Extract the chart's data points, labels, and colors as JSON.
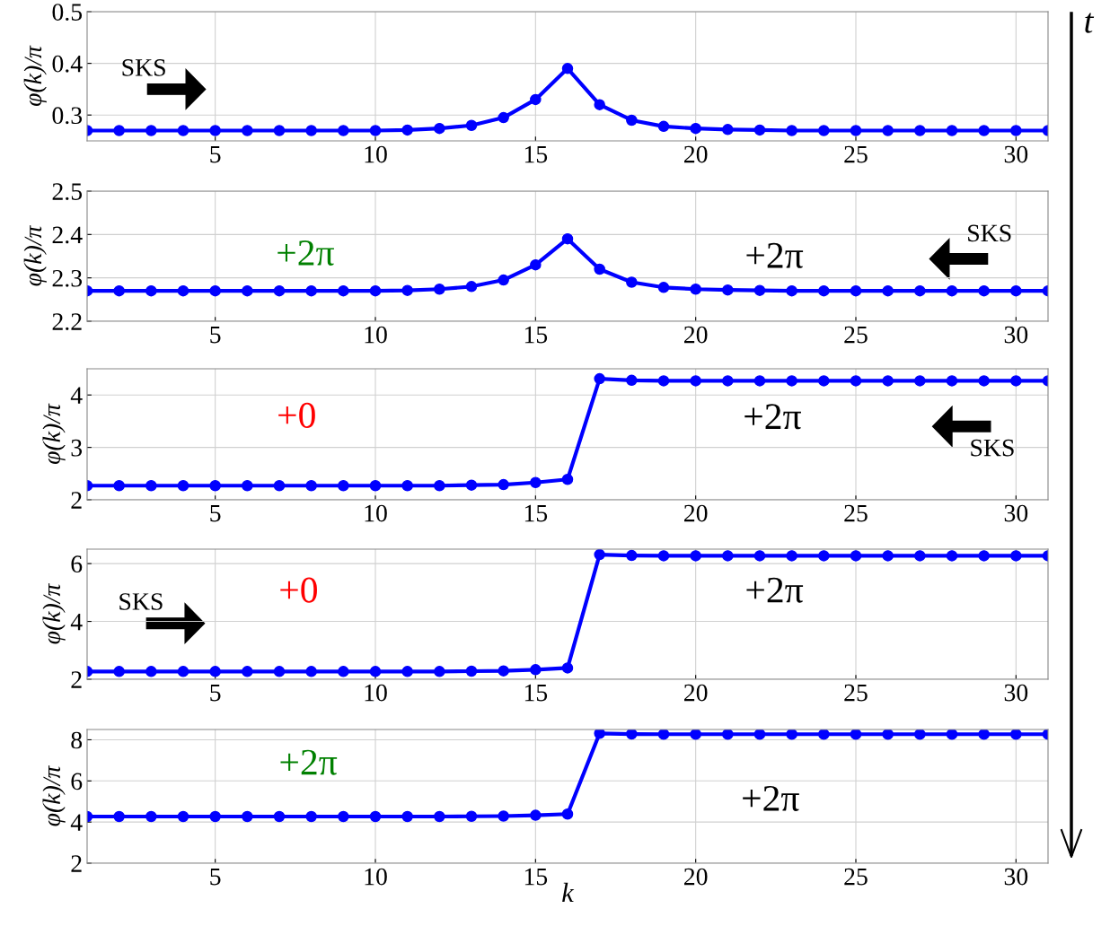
{
  "chart_data": [
    {
      "type": "line",
      "ylabel": "φ(k)/π",
      "x": [
        1,
        2,
        3,
        4,
        5,
        6,
        7,
        8,
        9,
        10,
        11,
        12,
        13,
        14,
        15,
        16,
        17,
        18,
        19,
        20,
        21,
        22,
        23,
        24,
        25,
        26,
        27,
        28,
        29,
        30,
        31
      ],
      "series": [
        {
          "color": "#0000ff",
          "values": [
            0.27,
            0.27,
            0.27,
            0.27,
            0.27,
            0.27,
            0.27,
            0.27,
            0.27,
            0.27,
            0.271,
            0.274,
            0.28,
            0.295,
            0.33,
            0.39,
            0.32,
            0.29,
            0.278,
            0.274,
            0.272,
            0.271,
            0.27,
            0.27,
            0.27,
            0.27,
            0.27,
            0.27,
            0.27,
            0.27,
            0.27
          ]
        }
      ],
      "xlim": [
        1,
        31
      ],
      "xticks": [
        5,
        10,
        15,
        20,
        25,
        30
      ],
      "ylim": [
        0.25,
        0.5
      ],
      "yticks": [
        0.3,
        0.4,
        0.5
      ],
      "grid": true,
      "marker": "circle",
      "line_style": "solid",
      "annotations": [
        "SKS",
        "t"
      ]
    },
    {
      "type": "line",
      "ylabel": "φ(k)/π",
      "x": [
        1,
        2,
        3,
        4,
        5,
        6,
        7,
        8,
        9,
        10,
        11,
        12,
        13,
        14,
        15,
        16,
        17,
        18,
        19,
        20,
        21,
        22,
        23,
        24,
        25,
        26,
        27,
        28,
        29,
        30,
        31
      ],
      "series": [
        {
          "color": "#0000ff",
          "values": [
            2.27,
            2.27,
            2.27,
            2.27,
            2.27,
            2.27,
            2.27,
            2.27,
            2.27,
            2.27,
            2.271,
            2.274,
            2.28,
            2.295,
            2.33,
            2.39,
            2.32,
            2.29,
            2.278,
            2.274,
            2.272,
            2.271,
            2.27,
            2.27,
            2.27,
            2.27,
            2.27,
            2.27,
            2.27,
            2.27,
            2.27
          ]
        }
      ],
      "xlim": [
        1,
        31
      ],
      "xticks": [
        5,
        10,
        15,
        20,
        25,
        30
      ],
      "ylim": [
        2.2,
        2.5
      ],
      "yticks": [
        2.2,
        2.3,
        2.4,
        2.5
      ],
      "grid": true,
      "marker": "circle",
      "line_style": "solid",
      "annotations": [
        "+2π",
        "+2π",
        "SKS"
      ]
    },
    {
      "type": "line",
      "ylabel": "φ(k)/π",
      "x": [
        1,
        2,
        3,
        4,
        5,
        6,
        7,
        8,
        9,
        10,
        11,
        12,
        13,
        14,
        15,
        16,
        17,
        18,
        19,
        20,
        21,
        22,
        23,
        24,
        25,
        26,
        27,
        28,
        29,
        30,
        31
      ],
      "series": [
        {
          "color": "#0000ff",
          "values": [
            2.27,
            2.27,
            2.27,
            2.27,
            2.27,
            2.27,
            2.27,
            2.27,
            2.27,
            2.27,
            2.27,
            2.27,
            2.28,
            2.29,
            2.33,
            2.39,
            4.31,
            4.28,
            4.27,
            4.27,
            4.27,
            4.27,
            4.27,
            4.27,
            4.27,
            4.27,
            4.27,
            4.27,
            4.27,
            4.27,
            4.27
          ]
        }
      ],
      "xlim": [
        1,
        31
      ],
      "xticks": [
        5,
        10,
        15,
        20,
        25,
        30
      ],
      "ylim": [
        2,
        4.5
      ],
      "yticks": [
        2,
        3,
        4
      ],
      "grid": true,
      "marker": "circle",
      "line_style": "solid",
      "annotations": [
        "+0",
        "+2π",
        "SKS"
      ]
    },
    {
      "type": "line",
      "ylabel": "φ(k)/π",
      "x": [
        1,
        2,
        3,
        4,
        5,
        6,
        7,
        8,
        9,
        10,
        11,
        12,
        13,
        14,
        15,
        16,
        17,
        18,
        19,
        20,
        21,
        22,
        23,
        24,
        25,
        26,
        27,
        28,
        29,
        30,
        31
      ],
      "series": [
        {
          "color": "#0000ff",
          "values": [
            2.27,
            2.27,
            2.27,
            2.27,
            2.27,
            2.27,
            2.27,
            2.27,
            2.27,
            2.27,
            2.27,
            2.27,
            2.28,
            2.29,
            2.33,
            2.39,
            6.31,
            6.28,
            6.27,
            6.27,
            6.27,
            6.27,
            6.27,
            6.27,
            6.27,
            6.27,
            6.27,
            6.27,
            6.27,
            6.27,
            6.27
          ]
        }
      ],
      "xlim": [
        1,
        31
      ],
      "xticks": [
        5,
        10,
        15,
        20,
        25,
        30
      ],
      "ylim": [
        2,
        6.5
      ],
      "yticks": [
        2,
        4,
        6
      ],
      "grid": true,
      "marker": "circle",
      "line_style": "solid",
      "annotations": [
        "+0",
        "+2π",
        "SKS"
      ]
    },
    {
      "type": "line",
      "ylabel": "φ(k)/π",
      "xlabel": "k",
      "x": [
        1,
        2,
        3,
        4,
        5,
        6,
        7,
        8,
        9,
        10,
        11,
        12,
        13,
        14,
        15,
        16,
        17,
        18,
        19,
        20,
        21,
        22,
        23,
        24,
        25,
        26,
        27,
        28,
        29,
        30,
        31
      ],
      "series": [
        {
          "color": "#0000ff",
          "values": [
            4.27,
            4.27,
            4.27,
            4.27,
            4.27,
            4.27,
            4.27,
            4.27,
            4.27,
            4.27,
            4.27,
            4.27,
            4.28,
            4.29,
            4.33,
            4.39,
            8.31,
            8.28,
            8.27,
            8.27,
            8.27,
            8.27,
            8.27,
            8.27,
            8.27,
            8.27,
            8.27,
            8.27,
            8.27,
            8.27,
            8.27
          ]
        }
      ],
      "xlim": [
        1,
        31
      ],
      "xticks": [
        5,
        10,
        15,
        20,
        25,
        30
      ],
      "ylim": [
        2,
        8.5
      ],
      "yticks": [
        2,
        4,
        6,
        8
      ],
      "grid": true,
      "marker": "circle",
      "line_style": "solid",
      "annotations": [
        "+2π",
        "+2π"
      ]
    }
  ]
}
